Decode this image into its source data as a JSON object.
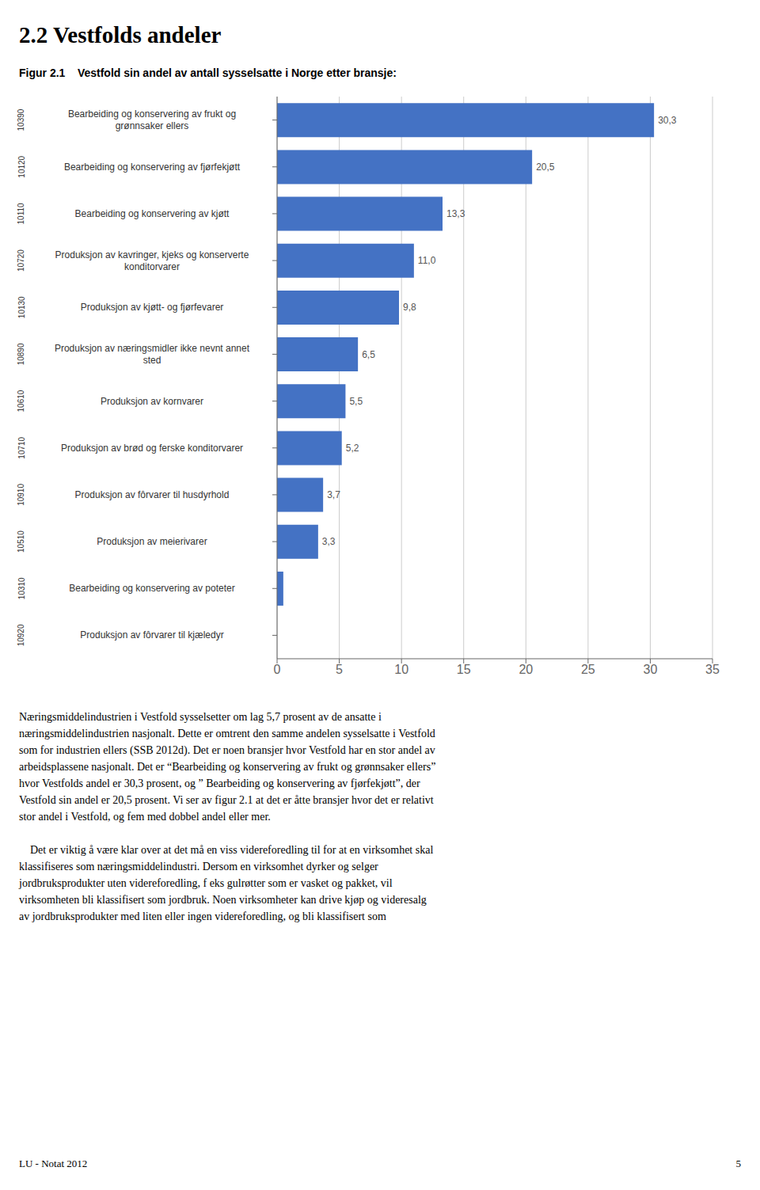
{
  "page_title": "2.2 Vestfolds andeler",
  "body_text": "Næringsmiddelindustrien i Vestfold sysselsetter om lag 5,7 prosent av de ansatte i\nnæringsmiddelindustrien nasjonalt. Dette er omtrent den samme andelen sysselsatte i Vestfold\nsom for industrien ellers (SSB 2012d). Det er noen bransjer hvor Vestfold har en stor andel av\narbeidsplassene nasjonalt. Det er “Bearbeiding og konservering av frukt og grønnsaker ellers”\nhvor Vestfolds andel er 30,3 prosent, og ” Bearbeiding og konservering av fjørfekjøtt”, der\nVestfold sin andel er 20,5 prosent. Vi ser av figur 2.1 at det er åtte bransjer hvor det er relativt\nstor andel i Vestfold, og fem med dobbel andel eller mer.\n\n    Det er viktig å være klar over at det må en viss videreforedling til for at en virksomhet skal\nklassifiseres som næringsmiddelindustri. Dersom en virksomhet dyrker og selger\njordbruksprodukter uten videreforedling, f eks gulrøtter som er vasket og pakket, vil\nvirksomheten bli klassifisert som jordbruk. Noen virksomheter kan drive kjøp og videresalg\nav jordbruksprodukter med liten eller ingen videreforedling, og bli klassifisert som",
  "footer_left": "LU - Notat 2012",
  "footer_right": "5",
  "chart_data": {
    "type": "bar",
    "orientation": "horizontal",
    "title": "Figur 2.1    Vestfold sin andel av antall sysselsatte i Norge etter bransje:",
    "categories": [
      "Bearbeiding og konservering av frukt og\ngrønnsaker ellers",
      "Bearbeiding og konservering av fjørfekjøtt",
      "Bearbeiding og konservering av kjøtt",
      "Produksjon av kavringer, kjeks og konserverte\nkonditorvarer",
      "Produksjon av kjøtt- og fjørfevarer",
      "Produksjon av næringsmidler ikke nevnt annet\nsted",
      "Produksjon av kornvarer",
      "Produksjon av brød og ferske konditorvarer",
      "Produksjon av fôrvarer til husdyrhold",
      "Produksjon av meierivarer",
      "Bearbeiding og konservering av poteter",
      "Produksjon av fôrvarer til kjæledyr"
    ],
    "category_codes": [
      "10390",
      "10120",
      "10110",
      "10720",
      "10130",
      "10890",
      "10610",
      "10710",
      "10910",
      "10510",
      "10310",
      "10920"
    ],
    "values": [
      30.3,
      20.5,
      13.3,
      11.0,
      9.8,
      6.5,
      5.5,
      5.2,
      3.7,
      3.3,
      0.5,
      0.0
    ],
    "value_labels": [
      "30,3",
      "20,5",
      "13,3",
      "11,0",
      "9,8",
      "6,5",
      "5,5",
      "5,2",
      "3,7",
      "3,3",
      null,
      null
    ],
    "data_labels": true,
    "color": "#4472C4",
    "xlim": [
      0,
      35
    ],
    "xticks": [
      0,
      5,
      10,
      15,
      20,
      25,
      30,
      35
    ],
    "grid": true
  }
}
